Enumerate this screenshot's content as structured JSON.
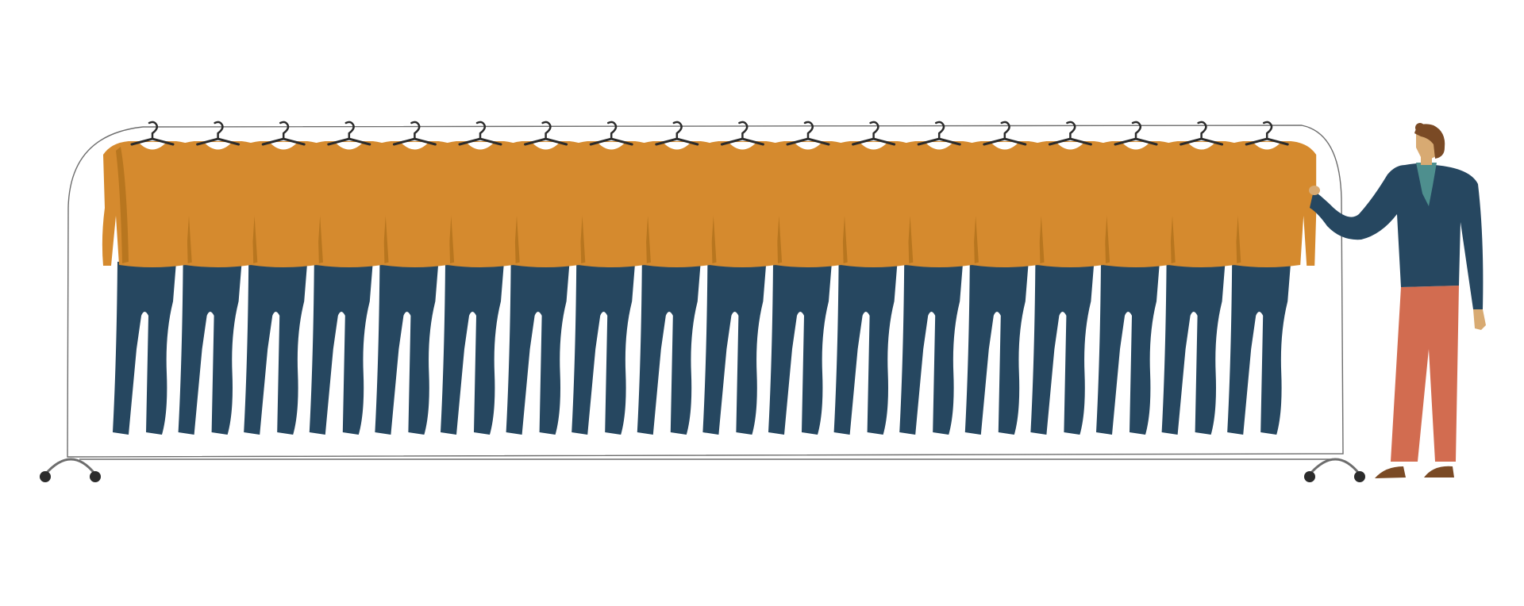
{
  "scene": {
    "background": "#ffffff",
    "garment_count": 18
  },
  "colors": {
    "sweater": "#d58a2e",
    "sweater_shade": "#b8761f",
    "pants": "#264760",
    "hanger": "#2b2b2b",
    "rack": "#6d6d6d",
    "wheel": "#2b2b2b",
    "person_top": "#264760",
    "person_pants": "#d26c50",
    "person_skin": "#d8aa72",
    "person_hair": "#7a4a25",
    "person_collar": "#4e8f8e",
    "person_shoes": "#7a4a25"
  },
  "icons": {
    "garment": "sweater-and-pants-outfit",
    "hanger": "hanger-icon",
    "person": "shopper-figure"
  }
}
